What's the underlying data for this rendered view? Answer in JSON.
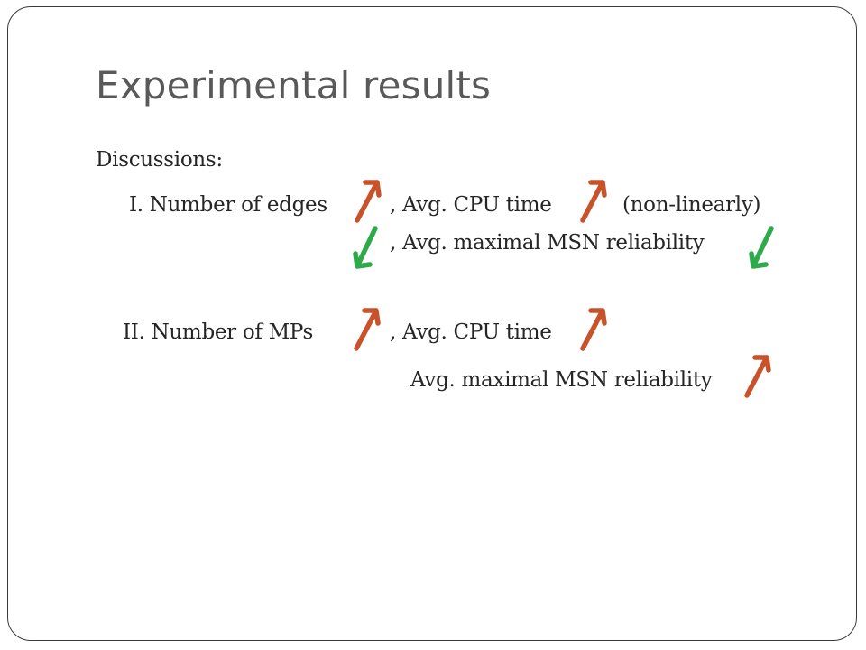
{
  "slide": {
    "title": "Experimental results",
    "discussions_label": "Discussions:",
    "item1": {
      "lead": "I. Number of edges",
      "cpu": ", Avg. CPU time",
      "nonlinear": "(non-linearly)",
      "reliability": ", Avg. maximal MSN reliability"
    },
    "item2": {
      "lead": "II.  Number of MPs",
      "cpu": ", Avg. CPU time",
      "reliability": "Avg. maximal MSN reliability"
    }
  },
  "colors": {
    "up_arrow": "#c8532a",
    "down_arrow": "#2eaa4a",
    "title": "#595959",
    "text": "#262626",
    "frame": "#3a3a3a"
  },
  "icons": {
    "up": "arrow-up-icon",
    "down": "arrow-down-icon"
  }
}
